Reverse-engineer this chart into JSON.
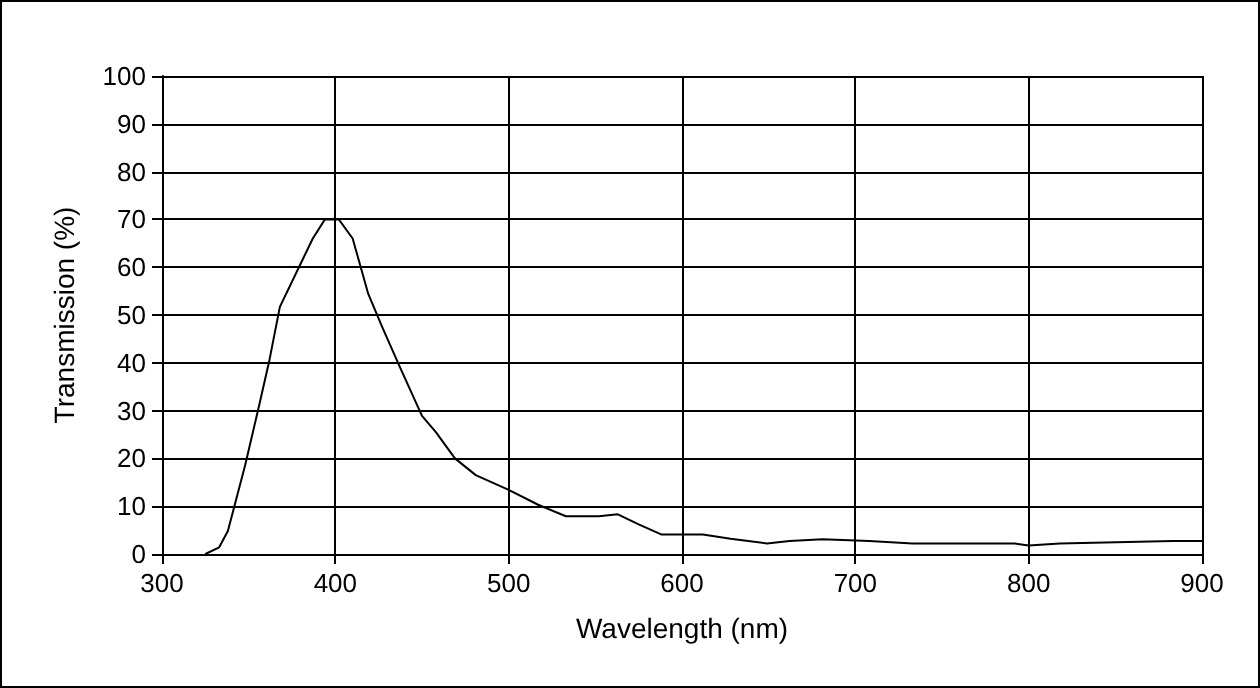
{
  "chart_data": {
    "type": "line",
    "xlabel": "Wavelength (nm)",
    "ylabel": "Transmission (%)",
    "xlim": [
      300,
      900
    ],
    "xticks": [
      300,
      400,
      500,
      600,
      700,
      800,
      900
    ],
    "ylim": [
      0,
      100
    ],
    "yticks": [
      0,
      10,
      20,
      30,
      40,
      50,
      60,
      70,
      80,
      90,
      100
    ],
    "grid": true,
    "marker": "none",
    "line_style": "solid",
    "series": [
      {
        "color": "#000000",
        "x": [
          325,
          333,
          338,
          348,
          356,
          362,
          368,
          379,
          387,
          394,
          402,
          410,
          419,
          427,
          437,
          450,
          458,
          469,
          481,
          500,
          517,
          533,
          552,
          563,
          575,
          588,
          599,
          612,
          628,
          649,
          662,
          681,
          708,
          733,
          792,
          800,
          818,
          883,
          900
        ],
        "values": [
          0,
          1.4,
          4.8,
          18.6,
          31,
          40.6,
          51.7,
          60,
          66,
          70,
          70,
          66,
          54.4,
          47.5,
          39.3,
          28.9,
          25.5,
          20,
          16.5,
          13.4,
          10.3,
          7.9,
          7.9,
          8.3,
          6.2,
          4.1,
          4.1,
          4.1,
          3.2,
          2.2,
          2.7,
          3.1,
          2.7,
          2.2,
          2.2,
          1.8,
          2.2,
          2.7,
          2.7
        ]
      }
    ]
  }
}
